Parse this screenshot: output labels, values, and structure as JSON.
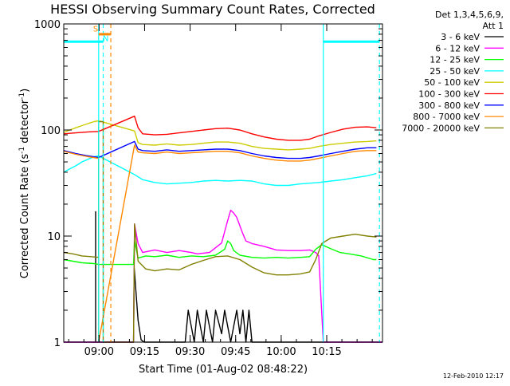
{
  "chart_data": {
    "type": "line",
    "title": "HESSI Observing Summary Count Rates, Corrected",
    "xlabel": "Start Time (01-Aug-02 08:48:22)",
    "ylabel_main": "Corrected Count Rate (s",
    "ylabel_sup1": "-1",
    "ylabel_mid": " detector",
    "ylabel_sup2": "-1",
    "ylabel_end": ")",
    "x_unit": "minutes after 08:48:22",
    "xlim": [
      0,
      105
    ],
    "ylim": [
      1,
      1000
    ],
    "yscale": "log",
    "x_ticks": [
      {
        "x": 11.63,
        "label": "09:00"
      },
      {
        "x": 26.63,
        "label": "09:15"
      },
      {
        "x": 41.63,
        "label": "09:30"
      },
      {
        "x": 56.63,
        "label": "09:45"
      },
      {
        "x": 71.63,
        "label": "10:00"
      },
      {
        "x": 86.63,
        "label": "10:15"
      }
    ],
    "y_ticks": [
      {
        "y": 1,
        "label": "1"
      },
      {
        "y": 10,
        "label": "10"
      },
      {
        "y": 100,
        "label": "100"
      },
      {
        "y": 1000,
        "label": "1000"
      }
    ],
    "legend_title_1": "Det 1,3,4,5,6,9,",
    "legend_title_2": "Att 1",
    "legend_placement": "right",
    "series": [
      {
        "name": "3 - 6 keV",
        "color": "#000000",
        "values": [
          [
            0,
            1
          ],
          [
            10.5,
            1
          ],
          [
            10.5,
            17
          ],
          [
            10.5,
            1
          ],
          [
            23,
            1
          ],
          [
            23.2,
            5
          ],
          [
            24.5,
            1.6
          ],
          [
            25.5,
            1.05
          ],
          [
            26.5,
            1
          ],
          [
            40,
            1
          ],
          [
            41,
            2
          ],
          [
            43,
            1
          ],
          [
            44,
            2
          ],
          [
            46,
            1
          ],
          [
            47,
            2
          ],
          [
            48,
            1.4
          ],
          [
            49,
            1
          ],
          [
            50,
            2
          ],
          [
            52,
            1.2
          ],
          [
            53,
            2
          ],
          [
            55,
            1
          ],
          [
            57,
            2
          ],
          [
            58,
            1.2
          ],
          [
            59,
            2
          ],
          [
            60,
            1
          ],
          [
            61,
            2
          ],
          [
            62,
            1
          ],
          [
            105,
            1
          ]
        ]
      },
      {
        "name": "6 - 12 keV",
        "color": "#ff00ff",
        "values": [
          [
            0,
            1
          ],
          [
            12,
            1
          ],
          [
            12,
            1
          ],
          [
            23,
            1
          ],
          [
            23.3,
            13
          ],
          [
            24.5,
            8.5
          ],
          [
            26,
            7
          ],
          [
            30,
            7.4
          ],
          [
            34,
            7
          ],
          [
            38,
            7.3
          ],
          [
            42,
            7
          ],
          [
            44,
            6.8
          ],
          [
            48,
            7
          ],
          [
            52,
            8.6
          ],
          [
            53,
            11
          ],
          [
            54,
            14
          ],
          [
            55,
            17.5
          ],
          [
            56,
            16.5
          ],
          [
            57,
            15
          ],
          [
            58,
            12.5
          ],
          [
            59,
            10.5
          ],
          [
            60,
            9
          ],
          [
            62,
            8.5
          ],
          [
            66,
            8
          ],
          [
            70,
            7.4
          ],
          [
            74,
            7.3
          ],
          [
            78,
            7.3
          ],
          [
            81,
            7.4
          ],
          [
            83,
            7
          ],
          [
            84,
            6.5
          ],
          [
            85.5,
            1
          ],
          [
            105,
            1
          ]
        ]
      },
      {
        "name": "12 - 25 keV",
        "color": "#00ff00",
        "values": [
          [
            0,
            6
          ],
          [
            3,
            5.8
          ],
          [
            6,
            5.6
          ],
          [
            10,
            5.5
          ],
          [
            11.5,
            5.4
          ],
          [
            12,
            5.4
          ],
          [
            23,
            5.4
          ],
          [
            23.3,
            9
          ],
          [
            24.5,
            6.2
          ],
          [
            27,
            6.5
          ],
          [
            30,
            6.4
          ],
          [
            34,
            6.6
          ],
          [
            38,
            6.3
          ],
          [
            42,
            6.5
          ],
          [
            46,
            6.4
          ],
          [
            50,
            6.6
          ],
          [
            53,
            7.5
          ],
          [
            54,
            9
          ],
          [
            55,
            8.5
          ],
          [
            56,
            7.3
          ],
          [
            58,
            6.6
          ],
          [
            62,
            6.3
          ],
          [
            66,
            6.2
          ],
          [
            70,
            6.3
          ],
          [
            74,
            6.2
          ],
          [
            78,
            6.3
          ],
          [
            81,
            6.4
          ],
          [
            83,
            7.5
          ],
          [
            85,
            8.3
          ],
          [
            88,
            7.6
          ],
          [
            91,
            7
          ],
          [
            94,
            6.8
          ],
          [
            98,
            6.5
          ],
          [
            102,
            6
          ],
          [
            103,
            6
          ]
        ]
      },
      {
        "name": "25 - 50 keV",
        "color": "#00ffff",
        "values": [
          [
            0,
            40
          ],
          [
            2,
            43
          ],
          [
            4,
            46
          ],
          [
            6,
            50
          ],
          [
            8,
            53
          ],
          [
            10,
            56
          ],
          [
            11.5,
            57
          ],
          [
            23.3,
            38
          ],
          [
            26,
            34
          ],
          [
            30,
            32
          ],
          [
            34,
            31
          ],
          [
            38,
            31.5
          ],
          [
            42,
            32
          ],
          [
            46,
            33
          ],
          [
            50,
            33.5
          ],
          [
            54,
            33
          ],
          [
            58,
            33.5
          ],
          [
            62,
            33
          ],
          [
            66,
            31
          ],
          [
            70,
            30
          ],
          [
            74,
            30
          ],
          [
            78,
            31
          ],
          [
            81,
            31.5
          ],
          [
            84,
            32
          ],
          [
            88,
            33
          ],
          [
            92,
            34
          ],
          [
            96,
            35.5
          ],
          [
            100,
            37
          ],
          [
            103,
            39
          ]
        ]
      },
      {
        "name": "50 - 100 keV",
        "color": "#cccc00",
        "values": [
          [
            0,
            95
          ],
          [
            2,
            100
          ],
          [
            4,
            105
          ],
          [
            6,
            110
          ],
          [
            8,
            115
          ],
          [
            10,
            120
          ],
          [
            11.5,
            122
          ],
          [
            23.3,
            98
          ],
          [
            24.5,
            76
          ],
          [
            26,
            73
          ],
          [
            30,
            72
          ],
          [
            34,
            74
          ],
          [
            38,
            72
          ],
          [
            42,
            73
          ],
          [
            46,
            75
          ],
          [
            50,
            77
          ],
          [
            54,
            77
          ],
          [
            58,
            75
          ],
          [
            62,
            70
          ],
          [
            66,
            67
          ],
          [
            70,
            66
          ],
          [
            74,
            65
          ],
          [
            78,
            66
          ],
          [
            81,
            67
          ],
          [
            84,
            70
          ],
          [
            88,
            73
          ],
          [
            92,
            75
          ],
          [
            96,
            77
          ],
          [
            100,
            78
          ],
          [
            103,
            79
          ]
        ]
      },
      {
        "name": "100 - 300 keV",
        "color": "#ff0000",
        "values": [
          [
            0,
            92
          ],
          [
            4,
            94
          ],
          [
            8,
            96
          ],
          [
            11.5,
            97
          ],
          [
            23.3,
            135
          ],
          [
            24.5,
            105
          ],
          [
            26,
            92
          ],
          [
            30,
            90
          ],
          [
            34,
            91
          ],
          [
            38,
            94
          ],
          [
            42,
            97
          ],
          [
            46,
            100
          ],
          [
            50,
            103
          ],
          [
            54,
            104
          ],
          [
            58,
            100
          ],
          [
            62,
            92
          ],
          [
            66,
            86
          ],
          [
            70,
            82
          ],
          [
            74,
            80
          ],
          [
            78,
            80
          ],
          [
            81,
            82
          ],
          [
            84,
            88
          ],
          [
            88,
            95
          ],
          [
            92,
            102
          ],
          [
            96,
            106
          ],
          [
            100,
            107
          ],
          [
            103,
            105
          ]
        ]
      },
      {
        "name": "300 - 800 keV",
        "color": "#0000ff",
        "values": [
          [
            0,
            64
          ],
          [
            4,
            60
          ],
          [
            8,
            57
          ],
          [
            11.5,
            55
          ],
          [
            23.3,
            78
          ],
          [
            24.5,
            66
          ],
          [
            26,
            64
          ],
          [
            30,
            63
          ],
          [
            34,
            65
          ],
          [
            38,
            63
          ],
          [
            42,
            64
          ],
          [
            46,
            65
          ],
          [
            50,
            66
          ],
          [
            54,
            66
          ],
          [
            58,
            64
          ],
          [
            62,
            60
          ],
          [
            66,
            57
          ],
          [
            70,
            55
          ],
          [
            74,
            54
          ],
          [
            78,
            54
          ],
          [
            81,
            55
          ],
          [
            84,
            57
          ],
          [
            88,
            60
          ],
          [
            92,
            63
          ],
          [
            96,
            66
          ],
          [
            100,
            68
          ],
          [
            103,
            68
          ]
        ]
      },
      {
        "name": "800 - 7000 keV",
        "color": "#ff8800",
        "values": [
          [
            0,
            63
          ],
          [
            4,
            59
          ],
          [
            8,
            56
          ],
          [
            11.5,
            54
          ],
          [
            11.5,
            1
          ],
          [
            23.3,
            72
          ],
          [
            24.5,
            62
          ],
          [
            26,
            61
          ],
          [
            30,
            60
          ],
          [
            34,
            62
          ],
          [
            38,
            60
          ],
          [
            42,
            61
          ],
          [
            46,
            62
          ],
          [
            50,
            63
          ],
          [
            54,
            63
          ],
          [
            58,
            61
          ],
          [
            62,
            57
          ],
          [
            66,
            54
          ],
          [
            70,
            52
          ],
          [
            74,
            51
          ],
          [
            78,
            51
          ],
          [
            81,
            52
          ],
          [
            84,
            54
          ],
          [
            88,
            57
          ],
          [
            92,
            60
          ],
          [
            96,
            63
          ],
          [
            100,
            64
          ],
          [
            103,
            64
          ]
        ]
      },
      {
        "name": "7000 - 20000 keV",
        "color": "#808000",
        "values": [
          [
            0,
            7
          ],
          [
            3,
            6.8
          ],
          [
            6,
            6.5
          ],
          [
            9,
            6.4
          ],
          [
            11.5,
            6.3
          ],
          [
            11.5,
            120
          ],
          [
            13,
            120
          ],
          [
            13,
            1
          ],
          [
            23,
            1
          ],
          [
            23.3,
            13
          ],
          [
            24.5,
            5.8
          ],
          [
            27,
            4.9
          ],
          [
            30,
            4.7
          ],
          [
            34,
            4.9
          ],
          [
            38,
            4.8
          ],
          [
            42,
            5.4
          ],
          [
            46,
            5.9
          ],
          [
            50,
            6.4
          ],
          [
            54,
            6.5
          ],
          [
            58,
            6
          ],
          [
            62,
            5.1
          ],
          [
            66,
            4.5
          ],
          [
            70,
            4.3
          ],
          [
            74,
            4.3
          ],
          [
            78,
            4.4
          ],
          [
            81,
            4.6
          ],
          [
            83,
            6
          ],
          [
            85,
            8.5
          ],
          [
            88,
            9.6
          ],
          [
            92,
            10
          ],
          [
            96,
            10.4
          ],
          [
            100,
            10
          ],
          [
            103,
            9.8
          ]
        ]
      }
    ],
    "vlines": [
      {
        "x": 11.5,
        "color": "#00ffff",
        "dash": false
      },
      {
        "x": 13,
        "color": "#00ffff",
        "dash": true
      },
      {
        "x": 15.5,
        "color": "#ff8800",
        "dash": true
      },
      {
        "x": 85.5,
        "color": "#00ffff",
        "dash": false
      },
      {
        "x": 104,
        "color": "#00ffff",
        "dash": true
      }
    ],
    "hsegments": [
      {
        "x0": 0,
        "x1": 13,
        "y": 680,
        "color": "#00ffff"
      },
      {
        "x0": 85.5,
        "x1": 104,
        "y": 680,
        "color": "#00ffff"
      },
      {
        "x0": 11.5,
        "x1": 15.5,
        "y": 800,
        "color": "#ff8800"
      }
    ],
    "flags": [
      {
        "x": 10.5,
        "y": 850,
        "text": "S",
        "color": "#ff8800"
      },
      {
        "x": 13.8,
        "y": 690,
        "text": "N",
        "color": "#00ffff"
      }
    ],
    "footer_timestamp": "12-Feb-2010 12:17"
  }
}
